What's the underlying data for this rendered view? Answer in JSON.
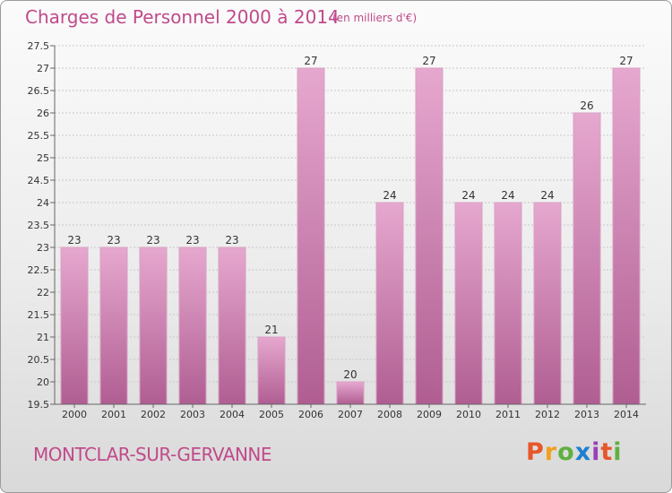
{
  "title": "Charges de Personnel 2000 à 2014",
  "subtitle": "(en milliers d'€)",
  "commune": "MONTCLAR-SUR-GERVANNE",
  "logo": {
    "text": "Proxiti",
    "colors": [
      "#e8562a",
      "#f0a020",
      "#5fb040",
      "#1e7fd0",
      "#9a3fb8",
      "#e8562a",
      "#5fb040"
    ]
  },
  "colors": {
    "bar_top": "#e6a8cf",
    "bar_bottom": "#b05e92",
    "title": "#c04a8b"
  },
  "chart_data": {
    "type": "bar",
    "categories": [
      "2000",
      "2001",
      "2002",
      "2003",
      "2004",
      "2005",
      "2006",
      "2007",
      "2008",
      "2009",
      "2010",
      "2011",
      "2012",
      "2013",
      "2014"
    ],
    "values": [
      23,
      23,
      23,
      23,
      23,
      21,
      27,
      20,
      24,
      27,
      24,
      24,
      24,
      26,
      27
    ],
    "ylim": [
      19.5,
      27.5
    ],
    "yticks": [
      "19.5",
      "20",
      "20.5",
      "21",
      "21.5",
      "22",
      "22.5",
      "23",
      "23.5",
      "24",
      "24.5",
      "25",
      "25.5",
      "26",
      "26.5",
      "27",
      "27.5"
    ],
    "grid": true
  }
}
